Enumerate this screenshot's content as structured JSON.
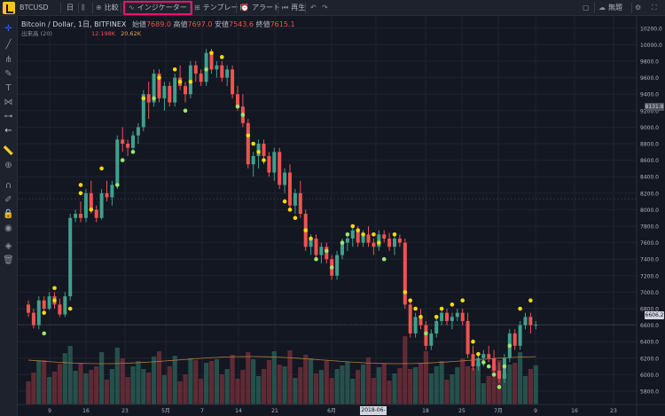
{
  "toolbar": {
    "symbol": "BTCUSD",
    "interval": "日",
    "compare": "比較",
    "indicators": "インジケーター",
    "template": "テンプレート",
    "alert": "アラート",
    "replay": "再生",
    "unnamed": "無題"
  },
  "legend": {
    "title": "Bitcoin / Dollar, 1日, BITFINEX",
    "open_label": "始値",
    "open": "7689.0",
    "high_label": "高値",
    "high": "7697.0",
    "low_label": "安値",
    "low": "7543.6",
    "close_label": "終値",
    "close": "7615.1",
    "volume_label": "出来高 (20)",
    "volume_value": "12.198K",
    "volume_ma": "20.62K"
  },
  "price_badge": "8131.8",
  "current_badge": "6606.2",
  "date_badge": "2018-06-08",
  "colors": {
    "up": "#3fa08d",
    "down": "#ef5350",
    "dot_yellow": "#f5d90a",
    "dot_green": "#9be66f"
  },
  "chart_data": {
    "type": "candlestick",
    "yticks": [
      "10200.0",
      "10000.0",
      "9800.0",
      "9600.0",
      "9400.0",
      "9200.0",
      "9000.0",
      "8800.0",
      "8600.0",
      "8400.0",
      "8200.0",
      "8000.0",
      "7800.0",
      "7600.0",
      "7400.0",
      "7200.0",
      "7000.0",
      "6800.0",
      "6600.0",
      "6400.0",
      "6200.0",
      "6000.0",
      "5800.0",
      "5600.0"
    ],
    "xticks": [
      "9",
      "16",
      "23",
      "5月",
      "7",
      "14",
      "21",
      "6月",
      "2018-06-08",
      "18",
      "25",
      "7月",
      "9",
      "16",
      "23"
    ],
    "ohlc": [
      [
        6850,
        6900,
        6700,
        6750
      ],
      [
        6750,
        6800,
        6560,
        6600
      ],
      [
        6600,
        6950,
        6550,
        6900
      ],
      [
        6900,
        6950,
        6750,
        6800
      ],
      [
        6800,
        7000,
        6780,
        6950
      ],
      [
        6950,
        7000,
        6800,
        6850
      ],
      [
        6850,
        6920,
        6700,
        6730
      ],
      [
        6730,
        7000,
        6700,
        6950
      ],
      [
        6950,
        7950,
        6900,
        7900
      ],
      [
        7900,
        8000,
        7850,
        7950
      ],
      [
        7950,
        8100,
        7850,
        7900
      ],
      [
        7900,
        8250,
        7850,
        8200
      ],
      [
        8200,
        8350,
        7950,
        8000
      ],
      [
        8000,
        8050,
        7850,
        7900
      ],
      [
        7900,
        8250,
        7880,
        8200
      ],
      [
        8200,
        8350,
        8100,
        8150
      ],
      [
        8150,
        8350,
        8050,
        8300
      ],
      [
        8300,
        8900,
        8250,
        8850
      ],
      [
        8850,
        9000,
        8700,
        8800
      ],
      [
        8800,
        8850,
        8650,
        8750
      ],
      [
        8750,
        8950,
        8700,
        8900
      ],
      [
        8900,
        9050,
        8800,
        9000
      ],
      [
        9000,
        9450,
        8950,
        9400
      ],
      [
        9400,
        9550,
        9100,
        9300
      ],
      [
        9300,
        9700,
        9250,
        9650
      ],
      [
        9650,
        9700,
        9300,
        9350
      ],
      [
        9350,
        9550,
        9200,
        9500
      ],
      [
        9500,
        9550,
        9250,
        9300
      ],
      [
        9300,
        9650,
        9250,
        9600
      ],
      [
        9600,
        9750,
        9450,
        9500
      ],
      [
        9500,
        9550,
        9300,
        9400
      ],
      [
        9400,
        9800,
        9350,
        9750
      ],
      [
        9750,
        9800,
        9550,
        9650
      ],
      [
        9650,
        9700,
        9500,
        9550
      ],
      [
        9550,
        9950,
        9500,
        9900
      ],
      [
        9900,
        9950,
        9650,
        9700
      ],
      [
        9700,
        9800,
        9600,
        9750
      ],
      [
        9750,
        9800,
        9550,
        9600
      ],
      [
        9600,
        9750,
        9500,
        9700
      ],
      [
        9700,
        9750,
        9350,
        9400
      ],
      [
        9400,
        9500,
        9200,
        9250
      ],
      [
        9250,
        9400,
        9000,
        9050
      ],
      [
        9050,
        9100,
        8500,
        8550
      ],
      [
        8550,
        8700,
        8400,
        8650
      ],
      [
        8650,
        8850,
        8500,
        8800
      ],
      [
        8800,
        8850,
        8550,
        8650
      ],
      [
        8650,
        8700,
        8400,
        8450
      ],
      [
        8450,
        8750,
        8350,
        8700
      ],
      [
        8700,
        8750,
        8250,
        8300
      ],
      [
        8300,
        8500,
        8200,
        8450
      ],
      [
        8450,
        8550,
        8000,
        8050
      ],
      [
        8050,
        8250,
        7950,
        8200
      ],
      [
        8200,
        8350,
        7900,
        7950
      ],
      [
        7950,
        8000,
        7500,
        7550
      ],
      [
        7550,
        7700,
        7450,
        7650
      ],
      [
        7650,
        7700,
        7400,
        7450
      ],
      [
        7450,
        7600,
        7350,
        7550
      ],
      [
        7550,
        7600,
        7350,
        7400
      ],
      [
        7400,
        7450,
        7150,
        7200
      ],
      [
        7200,
        7500,
        7150,
        7450
      ],
      [
        7450,
        7650,
        7400,
        7600
      ],
      [
        7600,
        7700,
        7500,
        7650
      ],
      [
        7650,
        7800,
        7550,
        7750
      ],
      [
        7750,
        7800,
        7550,
        7600
      ],
      [
        7600,
        7750,
        7550,
        7700
      ],
      [
        7700,
        7800,
        7550,
        7600
      ],
      [
        7600,
        7650,
        7450,
        7550
      ],
      [
        7550,
        7750,
        7500,
        7700
      ],
      [
        7700,
        7750,
        7600,
        7650
      ],
      [
        7650,
        7720,
        7500,
        7550
      ],
      [
        7550,
        7700,
        7450,
        7650
      ],
      [
        7650,
        7700,
        7550,
        7600
      ],
      [
        7600,
        7650,
        6800,
        6850
      ],
      [
        6850,
        6900,
        6450,
        6500
      ],
      [
        6500,
        6750,
        6450,
        6700
      ],
      [
        6700,
        6800,
        6550,
        6600
      ],
      [
        6600,
        6650,
        6300,
        6350
      ],
      [
        6350,
        6550,
        6300,
        6500
      ],
      [
        6500,
        6700,
        6450,
        6650
      ],
      [
        6650,
        6800,
        6600,
        6750
      ],
      [
        6750,
        6800,
        6600,
        6650
      ],
      [
        6650,
        6750,
        6550,
        6700
      ],
      [
        6700,
        6800,
        6650,
        6750
      ],
      [
        6750,
        6800,
        6600,
        6650
      ],
      [
        6650,
        6750,
        6200,
        6250
      ],
      [
        6250,
        6350,
        6050,
        6100
      ],
      [
        6100,
        6250,
        6050,
        6200
      ],
      [
        6200,
        6300,
        6100,
        6250
      ],
      [
        6250,
        6350,
        6150,
        6200
      ],
      [
        6200,
        6300,
        6000,
        6050
      ],
      [
        6050,
        6150,
        5900,
        5950
      ],
      [
        5950,
        6250,
        5900,
        6200
      ],
      [
        6200,
        6550,
        6150,
        6500
      ],
      [
        6500,
        6550,
        6300,
        6350
      ],
      [
        6350,
        6650,
        6300,
        6600
      ],
      [
        6600,
        6750,
        6550,
        6700
      ],
      [
        6700,
        6750,
        6500,
        6600
      ],
      [
        6600,
        6650,
        6550,
        6606
      ]
    ],
    "dots": [
      [
        3,
        6750,
        "y"
      ],
      [
        3,
        6500,
        "g"
      ],
      [
        5,
        7050,
        "y"
      ],
      [
        5,
        6900,
        "y"
      ],
      [
        8,
        6800,
        "y"
      ],
      [
        10,
        8300,
        "y"
      ],
      [
        10,
        8200,
        "y"
      ],
      [
        12,
        8000,
        "y"
      ],
      [
        14,
        8500,
        "y"
      ],
      [
        17,
        8300,
        "g"
      ],
      [
        18,
        8600,
        "g"
      ],
      [
        20,
        8700,
        "g"
      ],
      [
        22,
        9350,
        "y"
      ],
      [
        24,
        9350,
        "g"
      ],
      [
        25,
        9600,
        "y"
      ],
      [
        28,
        9700,
        "y"
      ],
      [
        29,
        9550,
        "y"
      ],
      [
        30,
        9200,
        "g"
      ],
      [
        31,
        9550,
        "y"
      ],
      [
        34,
        9700,
        "g"
      ],
      [
        35,
        9900,
        "y"
      ],
      [
        37,
        9850,
        "y"
      ],
      [
        40,
        9250,
        "g"
      ],
      [
        41,
        9150,
        "g"
      ],
      [
        42,
        8900,
        "y"
      ],
      [
        43,
        8800,
        "y"
      ],
      [
        44,
        8700,
        "y"
      ],
      [
        45,
        8600,
        "y"
      ],
      [
        49,
        8100,
        "y"
      ],
      [
        50,
        8000,
        "y"
      ],
      [
        51,
        7900,
        "y"
      ],
      [
        53,
        7750,
        "y"
      ],
      [
        54,
        7650,
        "y"
      ],
      [
        55,
        7400,
        "g"
      ],
      [
        57,
        7500,
        "g"
      ],
      [
        58,
        7300,
        "g"
      ],
      [
        60,
        7600,
        "g"
      ],
      [
        61,
        7700,
        "g"
      ],
      [
        62,
        7800,
        "y"
      ],
      [
        63,
        7750,
        "y"
      ],
      [
        64,
        7700,
        "y"
      ],
      [
        66,
        7700,
        "y"
      ],
      [
        67,
        7600,
        "y"
      ],
      [
        68,
        7400,
        "g"
      ],
      [
        70,
        7700,
        "y"
      ],
      [
        72,
        7000,
        "y"
      ],
      [
        73,
        6900,
        "y"
      ],
      [
        74,
        6800,
        "y"
      ],
      [
        75,
        6700,
        "y"
      ],
      [
        76,
        6500,
        "g"
      ],
      [
        78,
        6700,
        "y"
      ],
      [
        79,
        6800,
        "y"
      ],
      [
        81,
        6850,
        "y"
      ],
      [
        83,
        6900,
        "y"
      ],
      [
        85,
        6400,
        "y"
      ],
      [
        86,
        6250,
        "y"
      ],
      [
        87,
        6150,
        "g"
      ],
      [
        88,
        6100,
        "g"
      ],
      [
        89,
        6000,
        "g"
      ],
      [
        90,
        5850,
        "g"
      ],
      [
        91,
        6100,
        "g"
      ],
      [
        92,
        6350,
        "g"
      ],
      [
        94,
        6800,
        "y"
      ],
      [
        96,
        6900,
        "y"
      ]
    ]
  }
}
